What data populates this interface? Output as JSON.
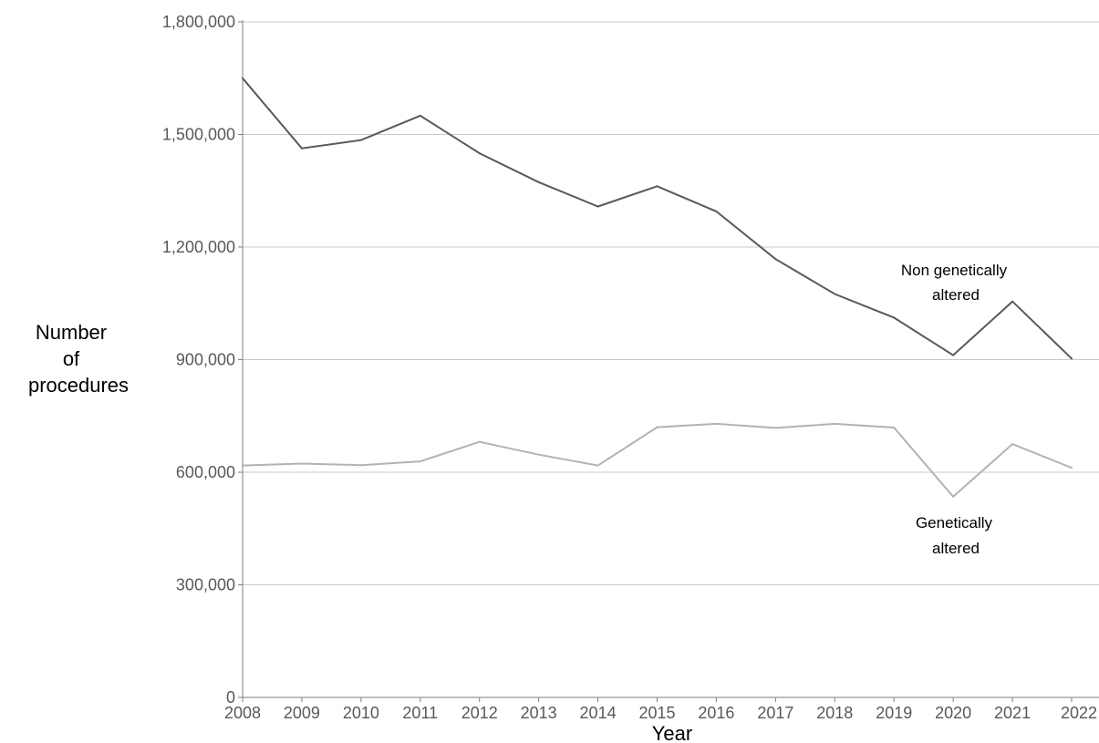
{
  "chart_data": {
    "type": "line",
    "x": [
      2008,
      2009,
      2010,
      2011,
      2012,
      2013,
      2014,
      2015,
      2016,
      2017,
      2018,
      2019,
      2020,
      2021,
      2022
    ],
    "series": [
      {
        "name": "Non genetically altered",
        "label_lines": [
          "Non genetically",
          "altered"
        ],
        "color": "#595959",
        "values": [
          1650000,
          1463000,
          1485000,
          1550000,
          1450000,
          1373000,
          1308000,
          1362000,
          1295000,
          1168000,
          1075000,
          1012000,
          912000,
          1055000,
          903000
        ]
      },
      {
        "name": "Genetically altered",
        "label_lines": [
          "Genetically",
          "altered"
        ],
        "color": "#b3b3b3",
        "values": [
          618000,
          623000,
          619000,
          629000,
          681000,
          647000,
          618000,
          720000,
          729000,
          718000,
          729000,
          719000,
          535000,
          675000,
          612000
        ]
      }
    ],
    "xlabel": "Year",
    "ylabel_lines": [
      "Number",
      "of",
      "procedures"
    ],
    "ylim": [
      0,
      1800000
    ],
    "yticks": [
      0,
      300000,
      600000,
      900000,
      1200000,
      1500000,
      1800000
    ],
    "ytick_labels": [
      "0",
      "300,000",
      "600,000",
      "900,000",
      "1,200,000",
      "1,500,000",
      "1,800,000"
    ],
    "grid": "horizontal",
    "axis_color": "#7f7f7f",
    "grid_color": "#c8c8c8"
  }
}
